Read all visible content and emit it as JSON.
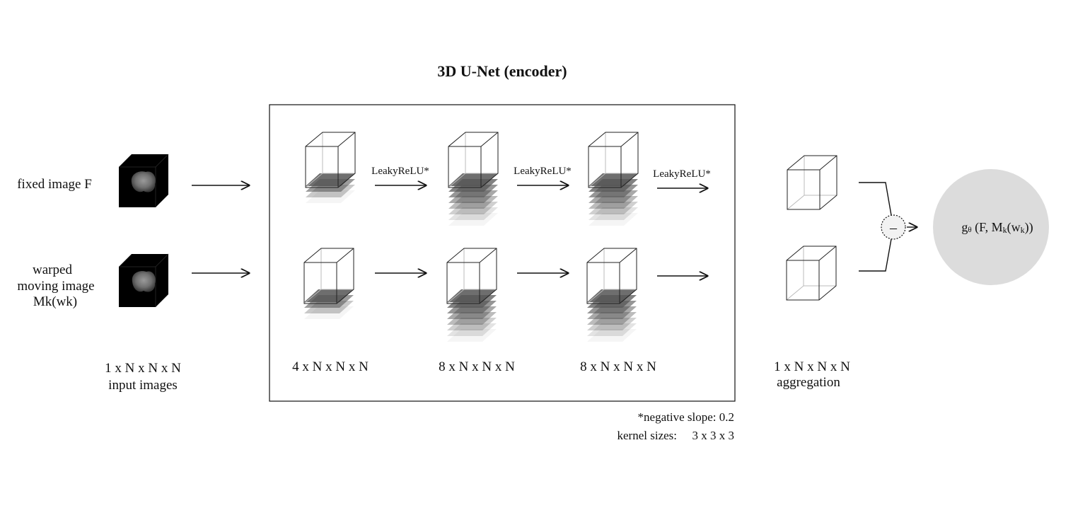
{
  "title": "3D U-Net (encoder)",
  "inputs": {
    "fixed_label": "fixed image F",
    "moving_label_line1": "warped",
    "moving_label_line2": "moving image",
    "moving_label_line3": "Mk(wk)",
    "dims": "1 x N x N x N",
    "caption": "input images"
  },
  "encoder": {
    "activation_label": "LeakyReLU*",
    "stages": [
      {
        "dims": "4 x N x N x N",
        "layers": 4
      },
      {
        "dims": "8 x N x N x N",
        "layers": 8
      },
      {
        "dims": "8 x N x N x N",
        "layers": 8
      }
    ]
  },
  "notes": {
    "slope": "*negative slope: 0.2",
    "kernel_label": "kernel sizes:",
    "kernel_value": "3 x 3 x 3"
  },
  "aggregation": {
    "dims": "1 x N x N x N",
    "caption": "aggregation"
  },
  "operator": {
    "symbol": "–"
  },
  "output": {
    "g": "g",
    "theta": "θ",
    "args_open": " (F, M",
    "k1": "k",
    "args_mid": "(w",
    "k2": "k",
    "args_close": "))"
  },
  "colors": {
    "layer_fill": "#555555",
    "output_circle": "#dcdcdc",
    "brain_bg": "#000000"
  }
}
